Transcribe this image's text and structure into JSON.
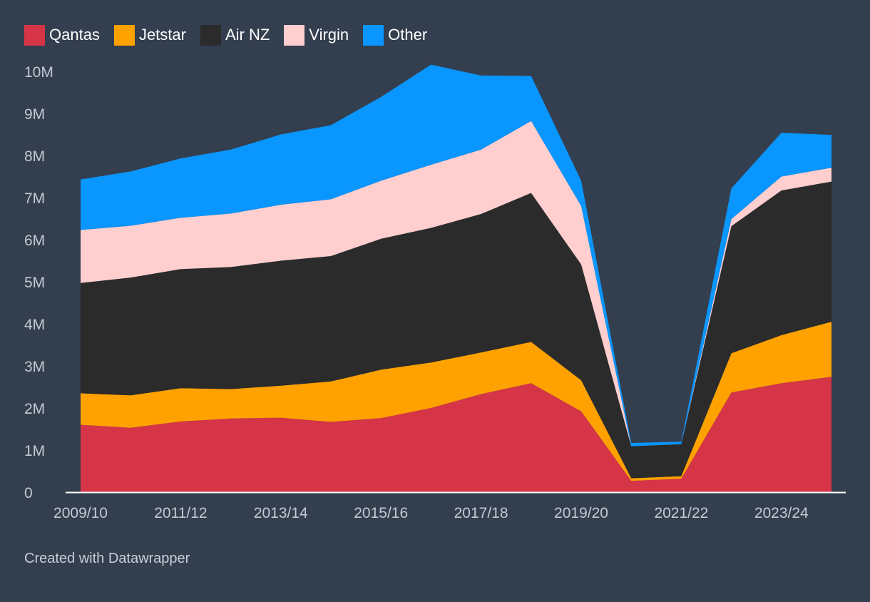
{
  "colors": {
    "background": "#333e4f",
    "tick_text": "#c4c9d1",
    "axis_line": "#ffffff"
  },
  "chart_data": {
    "type": "area",
    "stacked": true,
    "title": "",
    "xlabel": "",
    "ylabel": "",
    "x": [
      "2009/10",
      "2010/11",
      "2011/12",
      "2012/13",
      "2013/14",
      "2014/15",
      "2015/16",
      "2016/17",
      "2017/18",
      "2018/19",
      "2019/20",
      "2020/21",
      "2021/22",
      "2022/23",
      "2023/24",
      "2024/25"
    ],
    "x_tick_labels": [
      "2009/10",
      "2011/12",
      "2013/14",
      "2015/16",
      "2017/18",
      "2019/20",
      "2021/22",
      "2023/24"
    ],
    "ylim": [
      0,
      10000000
    ],
    "y_ticks": [
      0,
      1000000,
      2000000,
      3000000,
      4000000,
      5000000,
      6000000,
      7000000,
      8000000,
      9000000,
      10000000
    ],
    "y_tick_labels": [
      "0",
      "1M",
      "2M",
      "3M",
      "4M",
      "5M",
      "6M",
      "7M",
      "8M",
      "9M",
      "10M"
    ],
    "legend_position": "top-left",
    "series": [
      {
        "name": "Qantas",
        "color": "#d63447",
        "values": [
          1600000,
          1530000,
          1680000,
          1750000,
          1770000,
          1670000,
          1760000,
          2000000,
          2330000,
          2590000,
          1920000,
          270000,
          320000,
          2370000,
          2590000,
          2740000
        ]
      },
      {
        "name": "Jetstar",
        "color": "#ffa200",
        "values": [
          750000,
          770000,
          790000,
          700000,
          760000,
          960000,
          1150000,
          1080000,
          990000,
          980000,
          740000,
          60000,
          60000,
          930000,
          1140000,
          1310000
        ]
      },
      {
        "name": "Air NZ",
        "color": "#2b2b2b",
        "values": [
          2620000,
          2800000,
          2830000,
          2900000,
          2970000,
          2980000,
          3110000,
          3200000,
          3290000,
          3540000,
          2750000,
          760000,
          760000,
          3020000,
          3440000,
          3330000
        ]
      },
      {
        "name": "Virgin",
        "color": "#ffcfcf",
        "values": [
          1260000,
          1230000,
          1220000,
          1270000,
          1330000,
          1350000,
          1380000,
          1500000,
          1530000,
          1710000,
          1390000,
          0,
          0,
          170000,
          330000,
          330000
        ]
      },
      {
        "name": "Other",
        "color": "#0a96ff",
        "values": [
          1200000,
          1290000,
          1410000,
          1520000,
          1670000,
          1760000,
          1990000,
          2380000,
          1760000,
          1070000,
          600000,
          80000,
          60000,
          730000,
          1040000,
          780000
        ]
      }
    ]
  },
  "footer": {
    "credit": "Created with Datawrapper"
  }
}
